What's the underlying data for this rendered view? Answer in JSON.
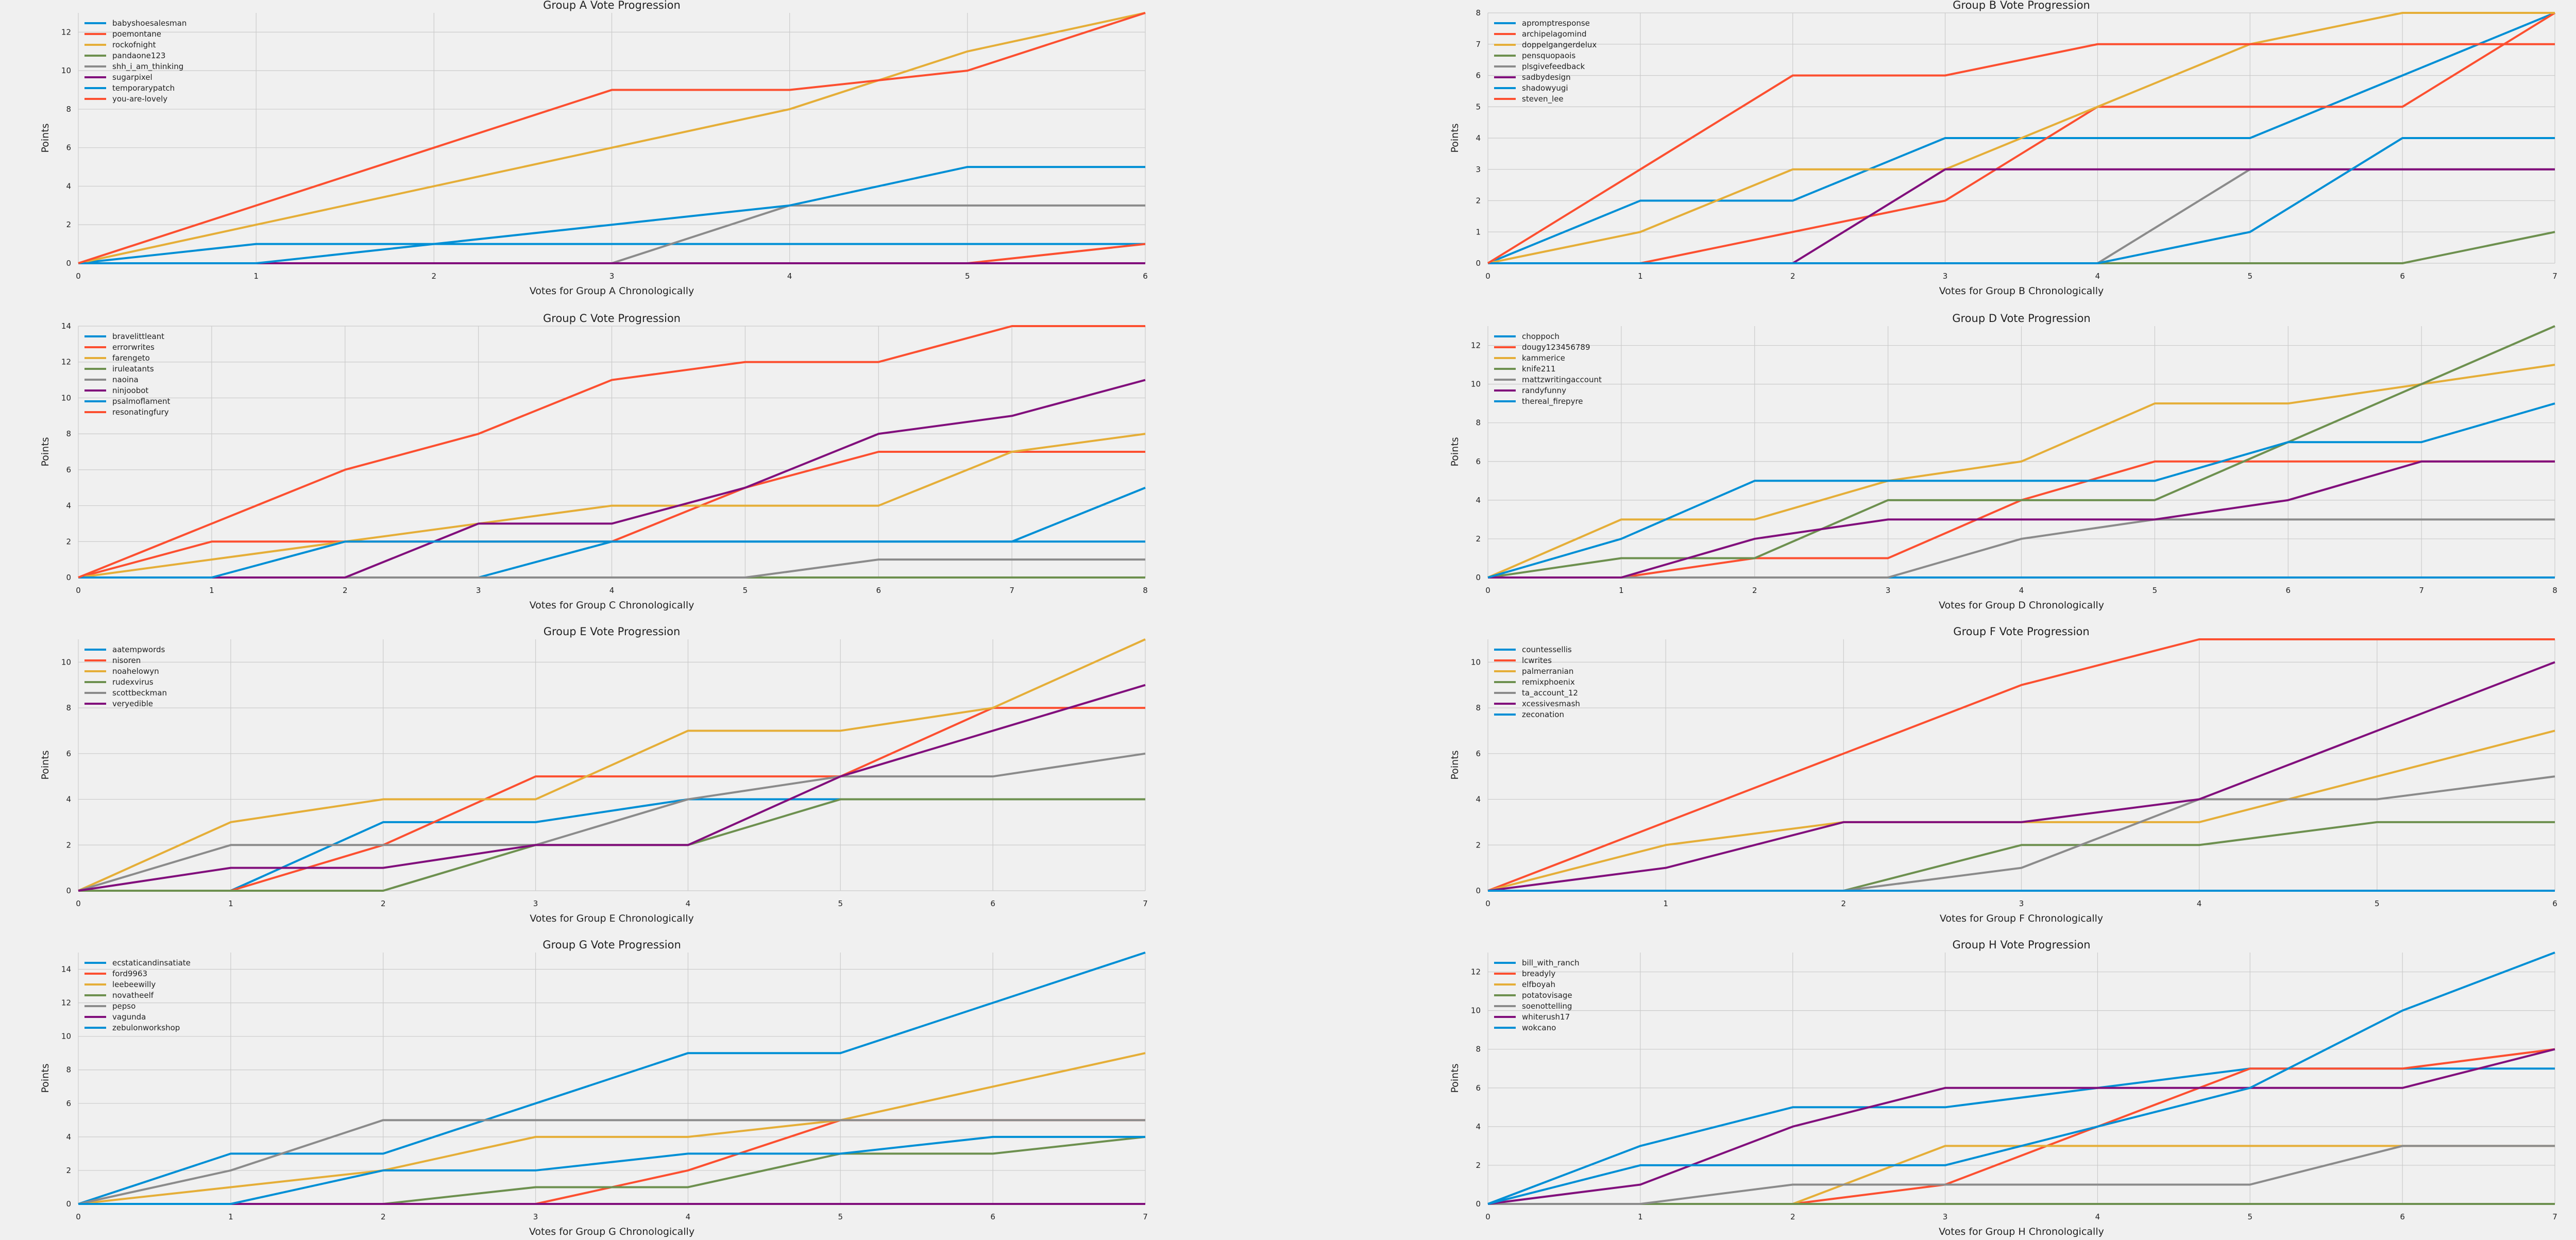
{
  "colors": [
    "#008fd5",
    "#fc4f30",
    "#e5ae38",
    "#6d904f",
    "#8b8b8b",
    "#810f7c",
    "#008fd5",
    "#fc4f30"
  ],
  "chart_data": [
    {
      "type": "line",
      "title": "Group A Vote Progression",
      "xlabel": "Votes for Group A Chronologically",
      "ylabel": "Points",
      "x": [
        0,
        1,
        2,
        3,
        4,
        5,
        6
      ],
      "xlim": [
        0,
        6
      ],
      "ylim": [
        0,
        13
      ],
      "xticks": [
        0,
        1,
        2,
        3,
        4,
        5,
        6
      ],
      "yticks": [
        0,
        2,
        4,
        6,
        8,
        10,
        12
      ],
      "legend": "top-left",
      "grid": true,
      "series": [
        {
          "name": "babyshoesalesman",
          "values": [
            0,
            1,
            1,
            1,
            1,
            1,
            1
          ]
        },
        {
          "name": "poemontane",
          "values": [
            0,
            0,
            0,
            0,
            0,
            0,
            1
          ]
        },
        {
          "name": "rockofnight",
          "values": [
            0,
            2,
            4,
            6,
            8,
            11,
            13
          ]
        },
        {
          "name": "pandaone123",
          "values": [
            0,
            0,
            0,
            0,
            0,
            0,
            0
          ]
        },
        {
          "name": "shh_i_am_thinking",
          "values": [
            0,
            0,
            0,
            0,
            3,
            3,
            3
          ]
        },
        {
          "name": "sugarpixel",
          "values": [
            0,
            0,
            0,
            0,
            0,
            0,
            0
          ]
        },
        {
          "name": "temporarypatch",
          "values": [
            0,
            0,
            1,
            2,
            3,
            5,
            5
          ]
        },
        {
          "name": "you-are-lovely",
          "values": [
            0,
            3,
            6,
            9,
            9,
            10,
            13
          ]
        }
      ]
    },
    {
      "type": "line",
      "title": "Group B Vote Progression",
      "xlabel": "Votes for Group B Chronologically",
      "ylabel": "Points",
      "x": [
        0,
        1,
        2,
        3,
        4,
        5,
        6,
        7
      ],
      "xlim": [
        0,
        7
      ],
      "ylim": [
        0,
        8
      ],
      "xticks": [
        0,
        1,
        2,
        3,
        4,
        5,
        6,
        7
      ],
      "yticks": [
        0,
        1,
        2,
        3,
        4,
        5,
        6,
        7,
        8
      ],
      "legend": "top-left",
      "grid": true,
      "series": [
        {
          "name": "apromptresponse",
          "values": [
            0,
            2,
            2,
            4,
            4,
            4,
            6,
            8
          ]
        },
        {
          "name": "archipelagomind",
          "values": [
            0,
            0,
            1,
            2,
            5,
            5,
            5,
            8
          ]
        },
        {
          "name": "doppelgangerdelux",
          "values": [
            0,
            1,
            3,
            3,
            5,
            7,
            8,
            8
          ]
        },
        {
          "name": "pensquopaois",
          "values": [
            0,
            0,
            0,
            0,
            0,
            0,
            0,
            1
          ]
        },
        {
          "name": "plsgivefeedback",
          "values": [
            0,
            0,
            0,
            0,
            0,
            3,
            3,
            3
          ]
        },
        {
          "name": "sadbydesign",
          "values": [
            0,
            0,
            0,
            3,
            3,
            3,
            3,
            3
          ]
        },
        {
          "name": "shadowyugi",
          "values": [
            0,
            0,
            0,
            0,
            0,
            1,
            4,
            4
          ]
        },
        {
          "name": "steven_lee",
          "values": [
            0,
            3,
            6,
            6,
            7,
            7,
            7,
            7
          ]
        }
      ]
    },
    {
      "type": "line",
      "title": "Group C Vote Progression",
      "xlabel": "Votes for Group C Chronologically",
      "ylabel": "Points",
      "x": [
        0,
        1,
        2,
        3,
        4,
        5,
        6,
        7,
        8
      ],
      "xlim": [
        0,
        8
      ],
      "ylim": [
        0,
        14
      ],
      "xticks": [
        0,
        1,
        2,
        3,
        4,
        5,
        6,
        7,
        8
      ],
      "yticks": [
        0,
        2,
        4,
        6,
        8,
        10,
        12,
        14
      ],
      "legend": "top-left",
      "grid": true,
      "series": [
        {
          "name": "bravelittleant",
          "values": [
            0,
            0,
            0,
            0,
            2,
            2,
            2,
            2,
            2
          ]
        },
        {
          "name": "errorwrites",
          "values": [
            0,
            2,
            2,
            2,
            2,
            5,
            7,
            7,
            7
          ]
        },
        {
          "name": "farengeto",
          "values": [
            0,
            1,
            2,
            3,
            4,
            4,
            4,
            7,
            8
          ]
        },
        {
          "name": "iruleatants",
          "values": [
            0,
            0,
            0,
            0,
            0,
            0,
            0,
            0,
            0
          ]
        },
        {
          "name": "naoina",
          "values": [
            0,
            0,
            0,
            0,
            0,
            0,
            1,
            1,
            1
          ]
        },
        {
          "name": "ninjoobot",
          "values": [
            0,
            0,
            0,
            3,
            3,
            5,
            8,
            9,
            11
          ]
        },
        {
          "name": "psalmoflament",
          "values": [
            0,
            0,
            2,
            2,
            2,
            2,
            2,
            2,
            5
          ]
        },
        {
          "name": "resonatingfury",
          "values": [
            0,
            3,
            6,
            8,
            11,
            12,
            12,
            14,
            14
          ]
        }
      ]
    },
    {
      "type": "line",
      "title": "Group D Vote Progression",
      "xlabel": "Votes for Group D Chronologically",
      "ylabel": "Points",
      "x": [
        0,
        1,
        2,
        3,
        4,
        5,
        6,
        7,
        8
      ],
      "xlim": [
        0,
        8
      ],
      "ylim": [
        0,
        13
      ],
      "xticks": [
        0,
        1,
        2,
        3,
        4,
        5,
        6,
        7,
        8
      ],
      "yticks": [
        0,
        2,
        4,
        6,
        8,
        10,
        12
      ],
      "legend": "top-left",
      "grid": true,
      "series": [
        {
          "name": "choppoch",
          "values": [
            0,
            0,
            0,
            0,
            0,
            0,
            0,
            0,
            0
          ]
        },
        {
          "name": "dougy123456789",
          "values": [
            0,
            0,
            1,
            1,
            4,
            6,
            6,
            6,
            6
          ]
        },
        {
          "name": "kammerice",
          "values": [
            0,
            3,
            3,
            5,
            6,
            9,
            9,
            10,
            11
          ]
        },
        {
          "name": "knife211",
          "values": [
            0,
            1,
            1,
            4,
            4,
            4,
            7,
            10,
            13
          ]
        },
        {
          "name": "mattzwritingaccount",
          "values": [
            0,
            0,
            0,
            0,
            2,
            3,
            3,
            3,
            3
          ]
        },
        {
          "name": "randyfunny",
          "values": [
            0,
            0,
            2,
            3,
            3,
            3,
            4,
            6,
            6
          ]
        },
        {
          "name": "thereal_firepyre",
          "values": [
            0,
            2,
            5,
            5,
            5,
            5,
            7,
            7,
            9
          ]
        }
      ]
    },
    {
      "type": "line",
      "title": "Group E Vote Progression",
      "xlabel": "Votes for Group E Chronologically",
      "ylabel": "Points",
      "x": [
        0,
        1,
        2,
        3,
        4,
        5,
        6,
        7
      ],
      "xlim": [
        0,
        7
      ],
      "ylim": [
        0,
        11
      ],
      "xticks": [
        0,
        1,
        2,
        3,
        4,
        5,
        6,
        7
      ],
      "yticks": [
        0,
        2,
        4,
        6,
        8,
        10
      ],
      "legend": "top-left",
      "grid": true,
      "series": [
        {
          "name": "aatempwords",
          "values": [
            0,
            0,
            3,
            3,
            4,
            4,
            4,
            4
          ]
        },
        {
          "name": "nisoren",
          "values": [
            0,
            0,
            2,
            5,
            5,
            5,
            8,
            8
          ]
        },
        {
          "name": "noahelowyn",
          "values": [
            0,
            3,
            4,
            4,
            7,
            7,
            8,
            11
          ]
        },
        {
          "name": "rudexvirus",
          "values": [
            0,
            0,
            0,
            2,
            2,
            4,
            4,
            4
          ]
        },
        {
          "name": "scottbeckman",
          "values": [
            0,
            2,
            2,
            2,
            4,
            5,
            5,
            6
          ]
        },
        {
          "name": "veryedible",
          "values": [
            0,
            1,
            1,
            2,
            2,
            5,
            7,
            9
          ]
        }
      ]
    },
    {
      "type": "line",
      "title": "Group F Vote Progression",
      "xlabel": "Votes for Group F Chronologically",
      "ylabel": "Points",
      "x": [
        0,
        1,
        2,
        3,
        4,
        5,
        6
      ],
      "xlim": [
        0,
        6
      ],
      "ylim": [
        0,
        11
      ],
      "xticks": [
        0,
        1,
        2,
        3,
        4,
        5,
        6
      ],
      "yticks": [
        0,
        2,
        4,
        6,
        8,
        10
      ],
      "legend": "top-left",
      "grid": true,
      "series": [
        {
          "name": "countessellis",
          "values": [
            0,
            0,
            0,
            0,
            0,
            0,
            0
          ]
        },
        {
          "name": "lcwrites",
          "values": [
            0,
            3,
            6,
            9,
            11,
            11,
            11
          ]
        },
        {
          "name": "palmerranian",
          "values": [
            0,
            2,
            3,
            3,
            3,
            5,
            7
          ]
        },
        {
          "name": "remixphoenix",
          "values": [
            0,
            0,
            0,
            2,
            2,
            3,
            3
          ]
        },
        {
          "name": "ta_account_12",
          "values": [
            0,
            0,
            0,
            1,
            4,
            4,
            5
          ]
        },
        {
          "name": "xcessivesmash",
          "values": [
            0,
            1,
            3,
            3,
            4,
            7,
            10
          ]
        },
        {
          "name": "zeconation",
          "values": [
            0,
            0,
            0,
            0,
            0,
            0,
            0
          ]
        }
      ]
    },
    {
      "type": "line",
      "title": "Group G Vote Progression",
      "xlabel": "Votes for Group G Chronologically",
      "ylabel": "Points",
      "x": [
        0,
        1,
        2,
        3,
        4,
        5,
        6,
        7
      ],
      "xlim": [
        0,
        7
      ],
      "ylim": [
        0,
        15
      ],
      "xticks": [
        0,
        1,
        2,
        3,
        4,
        5,
        6,
        7
      ],
      "yticks": [
        0,
        2,
        4,
        6,
        8,
        10,
        12,
        14
      ],
      "legend": "top-left",
      "grid": true,
      "series": [
        {
          "name": "ecstaticandinsatiate",
          "values": [
            0,
            3,
            3,
            6,
            9,
            9,
            12,
            15
          ]
        },
        {
          "name": "ford9963",
          "values": [
            0,
            0,
            0,
            0,
            2,
            5,
            5,
            5
          ]
        },
        {
          "name": "leebeewilly",
          "values": [
            0,
            1,
            2,
            4,
            4,
            5,
            7,
            9
          ]
        },
        {
          "name": "novatheelf",
          "values": [
            0,
            0,
            0,
            1,
            1,
            3,
            3,
            4
          ]
        },
        {
          "name": "pepso",
          "values": [
            0,
            2,
            5,
            5,
            5,
            5,
            5,
            5
          ]
        },
        {
          "name": "vagunda",
          "values": [
            0,
            0,
            0,
            0,
            0,
            0,
            0,
            0
          ]
        },
        {
          "name": "zebulonworkshop",
          "values": [
            0,
            0,
            2,
            2,
            3,
            3,
            4,
            4
          ]
        }
      ]
    },
    {
      "type": "line",
      "title": "Group H Vote Progression",
      "xlabel": "Votes for Group H Chronologically",
      "ylabel": "Points",
      "x": [
        0,
        1,
        2,
        3,
        4,
        5,
        6,
        7
      ],
      "xlim": [
        0,
        7
      ],
      "ylim": [
        0,
        13
      ],
      "xticks": [
        0,
        1,
        2,
        3,
        4,
        5,
        6,
        7
      ],
      "yticks": [
        0,
        2,
        4,
        6,
        8,
        10,
        12
      ],
      "legend": "top-left",
      "grid": true,
      "series": [
        {
          "name": "bill_with_ranch",
          "values": [
            0,
            3,
            5,
            5,
            6,
            7,
            7,
            7
          ]
        },
        {
          "name": "breadyly",
          "values": [
            0,
            0,
            0,
            1,
            4,
            7,
            7,
            8
          ]
        },
        {
          "name": "elfboyah",
          "values": [
            0,
            0,
            0,
            3,
            3,
            3,
            3,
            3
          ]
        },
        {
          "name": "potatovisage",
          "values": [
            0,
            0,
            0,
            0,
            0,
            0,
            0,
            0
          ]
        },
        {
          "name": "soenottelling",
          "values": [
            0,
            0,
            1,
            1,
            1,
            1,
            3,
            3
          ]
        },
        {
          "name": "whiterush17",
          "values": [
            0,
            1,
            4,
            6,
            6,
            6,
            6,
            8
          ]
        },
        {
          "name": "wokcano",
          "values": [
            0,
            2,
            2,
            2,
            4,
            6,
            10,
            13
          ]
        }
      ]
    }
  ]
}
